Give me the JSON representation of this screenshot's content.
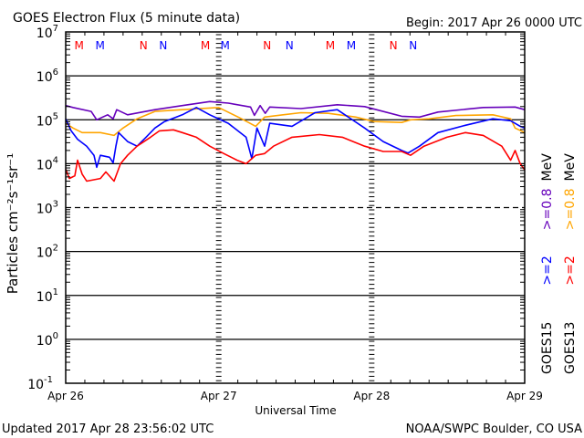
{
  "chart_data": {
    "type": "line",
    "title": "GOES Electron Flux (5 minute data)",
    "begin_label": "Begin: 2017 Apr 26 0000 UTC",
    "xlabel": "Universal Time",
    "ylabel": "Particles cm⁻²s⁻¹sr⁻¹",
    "yscale": "log",
    "ylim": [
      0.1,
      10000000
    ],
    "xlim_hours": [
      0,
      72
    ],
    "x_ticks": [
      {
        "hour": 0,
        "label": "Apr 26"
      },
      {
        "hour": 24,
        "label": "Apr 27"
      },
      {
        "hour": 48,
        "label": "Apr 28"
      },
      {
        "hour": 72,
        "label": "Apr 29"
      }
    ],
    "y_ticks": [
      {
        "value": 10000000,
        "base": "10",
        "exp": "7"
      },
      {
        "value": 1000000,
        "base": "10",
        "exp": "6"
      },
      {
        "value": 100000,
        "base": "10",
        "exp": "5"
      },
      {
        "value": 10000,
        "base": "10",
        "exp": "4"
      },
      {
        "value": 1000,
        "base": "10",
        "exp": "3"
      },
      {
        "value": 100,
        "base": "10",
        "exp": "2"
      },
      {
        "value": 10,
        "base": "10",
        "exp": "1"
      },
      {
        "value": 1,
        "base": "10",
        "exp": "0"
      },
      {
        "value": 0.1,
        "base": "10",
        "exp": "-1"
      }
    ],
    "thresholds": [
      {
        "value": 1000,
        "style": "dashed"
      }
    ],
    "markers": [
      {
        "hour": 2.1,
        "label": "M",
        "color": "#ff0000"
      },
      {
        "hour": 5.4,
        "label": "M",
        "color": "#0000ff"
      },
      {
        "hour": 12.2,
        "label": "N",
        "color": "#ff0000"
      },
      {
        "hour": 15.3,
        "label": "N",
        "color": "#0000ff"
      },
      {
        "hour": 21.9,
        "label": "M",
        "color": "#ff0000"
      },
      {
        "hour": 25.0,
        "label": "M",
        "color": "#0000ff"
      },
      {
        "hour": 31.6,
        "label": "N",
        "color": "#ff0000"
      },
      {
        "hour": 35.1,
        "label": "N",
        "color": "#0000ff"
      },
      {
        "hour": 41.5,
        "label": "M",
        "color": "#ff0000"
      },
      {
        "hour": 44.8,
        "label": "M",
        "color": "#0000ff"
      },
      {
        "hour": 51.4,
        "label": "N",
        "color": "#ff0000"
      },
      {
        "hour": 54.5,
        "label": "N",
        "color": "#0000ff"
      }
    ],
    "legend": {
      "placement": "right",
      "satellites": [
        {
          "name": "GOES15",
          "entries": [
            {
              "label": ">=2",
              "color": "#0000ff"
            },
            {
              "label": ">=0.8",
              "color": "#6600bb"
            }
          ],
          "unit": "MeV"
        },
        {
          "name": "GOES13",
          "entries": [
            {
              "label": ">=2",
              "color": "#ff0000"
            },
            {
              "label": ">=0.8",
              "color": "#ffa500"
            }
          ],
          "unit": "MeV"
        }
      ]
    },
    "series": [
      {
        "name": "GOES15 >=0.8 MeV",
        "color": "#6600bb",
        "points": [
          [
            0,
            210000.0
          ],
          [
            1.14,
            190000.0
          ],
          [
            4.0,
            155000.0
          ],
          [
            4.87,
            100000.0
          ],
          [
            6.58,
            130000.0
          ],
          [
            7.44,
            105000.0
          ],
          [
            8.0,
            170000.0
          ],
          [
            9.7,
            130000.0
          ],
          [
            14.0,
            170000.0
          ],
          [
            18.3,
            210000.0
          ],
          [
            22.6,
            260000.0
          ],
          [
            25.5,
            240000.0
          ],
          [
            29.0,
            195000.0
          ],
          [
            29.6,
            126000.0
          ],
          [
            30.5,
            210000.0
          ],
          [
            31.3,
            140000.0
          ],
          [
            32.0,
            195000.0
          ],
          [
            36.9,
            180000.0
          ],
          [
            42.6,
            220000.0
          ],
          [
            46.9,
            200000.0
          ],
          [
            52.7,
            120000.0
          ],
          [
            55.5,
            115000.0
          ],
          [
            58.4,
            150000.0
          ],
          [
            65.5,
            190000.0
          ],
          [
            70.5,
            195000.0
          ],
          [
            72,
            170000.0
          ]
        ]
      },
      {
        "name": "GOES13 >=0.8 MeV",
        "color": "#ffa500",
        "points": [
          [
            0,
            83000.0
          ],
          [
            1.14,
            65000.0
          ],
          [
            2.58,
            51000.0
          ],
          [
            5.44,
            51000.0
          ],
          [
            7.58,
            44000.0
          ],
          [
            9.0,
            65000.0
          ],
          [
            11.2,
            105000.0
          ],
          [
            14.0,
            155000.0
          ],
          [
            18.3,
            170000.0
          ],
          [
            24,
            190000.0
          ],
          [
            27.6,
            105000.0
          ],
          [
            29.8,
            71000.0
          ],
          [
            31.2,
            115000.0
          ],
          [
            34.1,
            130000.0
          ],
          [
            36.9,
            145000.0
          ],
          [
            41.2,
            140000.0
          ],
          [
            45.5,
            115000.0
          ],
          [
            48.4,
            91000.0
          ],
          [
            52.7,
            87000.0
          ],
          [
            54.1,
            100000.0
          ],
          [
            57.0,
            105000.0
          ],
          [
            61.2,
            125000.0
          ],
          [
            67.0,
            130000.0
          ],
          [
            69.8,
            105000.0
          ],
          [
            70.5,
            65000.0
          ],
          [
            72,
            51000.0
          ]
        ]
      },
      {
        "name": "GOES15 >=2 MeV",
        "color": "#0000ff",
        "points": [
          [
            0,
            105000.0
          ],
          [
            0.86,
            56000.0
          ],
          [
            1.86,
            36000.0
          ],
          [
            3.29,
            25000.0
          ],
          [
            4.44,
            15500.0
          ],
          [
            4.87,
            8300.0
          ],
          [
            5.44,
            15500.0
          ],
          [
            6.87,
            14000.0
          ],
          [
            7.44,
            10500.0
          ],
          [
            7.87,
            25000.0
          ],
          [
            8.3,
            51000.0
          ],
          [
            9.7,
            32000.0
          ],
          [
            11.2,
            25000.0
          ],
          [
            12.6,
            40000.0
          ],
          [
            14.0,
            65000.0
          ],
          [
            15.5,
            91000.0
          ],
          [
            18.3,
            130000.0
          ],
          [
            20.5,
            190000.0
          ],
          [
            22.6,
            130000.0
          ],
          [
            25.5,
            83000.0
          ],
          [
            28.3,
            40000.0
          ],
          [
            29.2,
            13000.0
          ],
          [
            30.0,
            65000.0
          ],
          [
            31.2,
            25000.0
          ],
          [
            32.0,
            83000.0
          ],
          [
            35.5,
            71000.0
          ],
          [
            39.1,
            145000.0
          ],
          [
            42.6,
            170000.0
          ],
          [
            46.9,
            65000.0
          ],
          [
            49.8,
            32000.0
          ],
          [
            52.7,
            20000.0
          ],
          [
            53.7,
            17500.0
          ],
          [
            55.5,
            25000.0
          ],
          [
            58.4,
            51000.0
          ],
          [
            62.7,
            75000.0
          ],
          [
            67.0,
            105000.0
          ],
          [
            69.8,
            95000.0
          ],
          [
            71.3,
            71000.0
          ],
          [
            72,
            65000.0
          ]
        ]
      },
      {
        "name": "GOES13 >=2 MeV",
        "color": "#ff0000",
        "points": [
          [
            0,
            7500.0
          ],
          [
            0.57,
            4600.0
          ],
          [
            1.43,
            5300.0
          ],
          [
            1.86,
            12000.0
          ],
          [
            2.58,
            5800.0
          ],
          [
            3.29,
            4000.0
          ],
          [
            5.44,
            4600.0
          ],
          [
            6.3,
            6500.0
          ],
          [
            7.58,
            4000.0
          ],
          [
            8.6,
            10000.0
          ],
          [
            9.7,
            15500.0
          ],
          [
            11.2,
            25000.0
          ],
          [
            13.3,
            40000.0
          ],
          [
            14.7,
            56000.0
          ],
          [
            16.9,
            59000.0
          ],
          [
            18.3,
            51000.0
          ],
          [
            20.5,
            40000.0
          ],
          [
            22.6,
            25000.0
          ],
          [
            24.8,
            17000.0
          ],
          [
            26.9,
            12000.0
          ],
          [
            28.3,
            10000.0
          ],
          [
            29.8,
            15500.0
          ],
          [
            31.2,
            17000.0
          ],
          [
            32.6,
            25000.0
          ],
          [
            35.5,
            40000.0
          ],
          [
            39.8,
            46000.0
          ],
          [
            43.4,
            40000.0
          ],
          [
            46.9,
            25000.0
          ],
          [
            49.8,
            19000.0
          ],
          [
            52.7,
            19000.0
          ],
          [
            54.1,
            15500.0
          ],
          [
            56.2,
            25000.0
          ],
          [
            59.8,
            40000.0
          ],
          [
            62.7,
            51000.0
          ],
          [
            65.5,
            44000.0
          ],
          [
            68.4,
            25000.0
          ],
          [
            69.8,
            12000.0
          ],
          [
            70.5,
            20000.0
          ],
          [
            71.3,
            10000.0
          ],
          [
            72,
            7200.0
          ]
        ]
      }
    ]
  },
  "footer": {
    "updated": "Updated 2017 Apr 28 23:56:02 UTC",
    "credit": "NOAA/SWPC Boulder, CO USA"
  }
}
